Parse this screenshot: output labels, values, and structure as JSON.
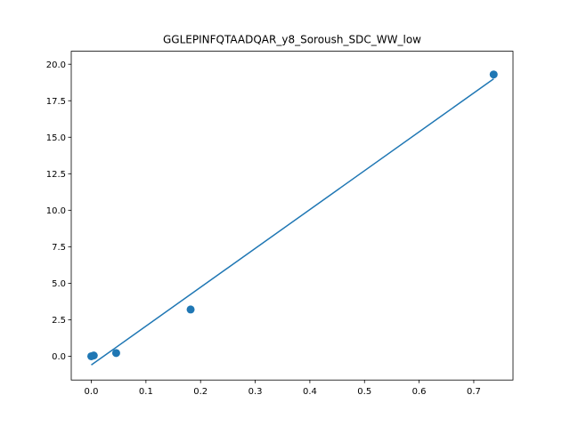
{
  "chart_data": {
    "type": "scatter",
    "title": "GGLEPINFQTAADQAR_y8_Soroush_SDC_WW_low",
    "xlabel": "",
    "ylabel": "",
    "xlim": [
      -0.0367,
      0.7718
    ],
    "ylim": [
      -1.63,
      20.89
    ],
    "grid": false,
    "x_ticks": [
      0.0,
      0.1,
      0.2,
      0.3,
      0.4,
      0.5,
      0.6,
      0.7
    ],
    "x_tick_labels": [
      "0.0",
      "0.1",
      "0.2",
      "0.3",
      "0.4",
      "0.5",
      "0.6",
      "0.7"
    ],
    "y_ticks": [
      0.0,
      2.5,
      5.0,
      7.5,
      10.0,
      12.5,
      15.0,
      17.5,
      20.0
    ],
    "y_tick_labels": [
      "0.0",
      "2.5",
      "5.0",
      "7.5",
      "10.0",
      "12.5",
      "15.0",
      "17.5",
      "20.0"
    ],
    "color": "#1f77b4",
    "series": [
      {
        "type": "scatter",
        "x": [
          0.0,
          0.0045,
          0.0455,
          0.1818,
          0.7364
        ],
        "y": [
          0.0,
          0.05,
          0.22,
          3.2,
          19.3
        ]
      },
      {
        "type": "line",
        "x": [
          0.0,
          0.7364
        ],
        "y": [
          -0.6,
          19.0
        ]
      }
    ]
  }
}
